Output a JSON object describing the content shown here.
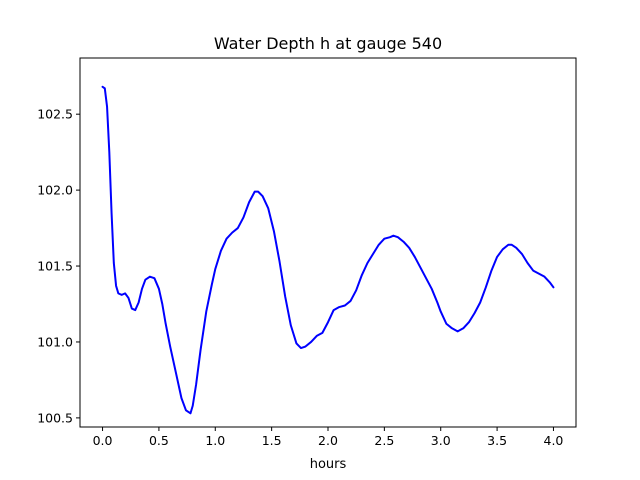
{
  "chart_data": {
    "type": "line",
    "title": "Water Depth h at gauge 540",
    "xlabel": "hours",
    "ylabel": "",
    "xlim": [
      -0.2,
      4.2
    ],
    "ylim": [
      100.44,
      102.87
    ],
    "xticks": [
      0.0,
      0.5,
      1.0,
      1.5,
      2.0,
      2.5,
      3.0,
      3.5,
      4.0
    ],
    "xtick_labels": [
      "0.0",
      "0.5",
      "1.0",
      "1.5",
      "2.0",
      "2.5",
      "3.0",
      "3.5",
      "4.0"
    ],
    "yticks": [
      100.5,
      101.0,
      101.5,
      102.0,
      102.5
    ],
    "ytick_labels": [
      "100.5",
      "101.0",
      "101.5",
      "102.0",
      "102.5"
    ],
    "grid": false,
    "series": [
      {
        "color": "#0000ff",
        "x": [
          0.0,
          0.02,
          0.04,
          0.06,
          0.08,
          0.1,
          0.12,
          0.14,
          0.17,
          0.2,
          0.23,
          0.26,
          0.29,
          0.32,
          0.35,
          0.38,
          0.42,
          0.46,
          0.5,
          0.53,
          0.56,
          0.6,
          0.65,
          0.7,
          0.74,
          0.78,
          0.8,
          0.83,
          0.87,
          0.92,
          0.97,
          1.0,
          1.05,
          1.1,
          1.15,
          1.2,
          1.25,
          1.3,
          1.35,
          1.38,
          1.42,
          1.47,
          1.52,
          1.57,
          1.62,
          1.67,
          1.72,
          1.76,
          1.8,
          1.85,
          1.9,
          1.95,
          2.0,
          2.05,
          2.1,
          2.15,
          2.2,
          2.25,
          2.3,
          2.35,
          2.4,
          2.45,
          2.5,
          2.55,
          2.58,
          2.62,
          2.67,
          2.72,
          2.77,
          2.82,
          2.87,
          2.92,
          2.97,
          3.0,
          3.05,
          3.1,
          3.15,
          3.2,
          3.25,
          3.3,
          3.35,
          3.4,
          3.45,
          3.5,
          3.55,
          3.6,
          3.63,
          3.67,
          3.72,
          3.77,
          3.82,
          3.87,
          3.92,
          3.97,
          4.0
        ],
        "y": [
          102.68,
          102.67,
          102.55,
          102.25,
          101.85,
          101.52,
          101.37,
          101.32,
          101.31,
          101.32,
          101.29,
          101.22,
          101.21,
          101.26,
          101.35,
          101.41,
          101.43,
          101.42,
          101.35,
          101.25,
          101.12,
          100.97,
          100.8,
          100.63,
          100.55,
          100.53,
          100.58,
          100.72,
          100.95,
          101.2,
          101.38,
          101.48,
          101.6,
          101.68,
          101.72,
          101.75,
          101.82,
          101.92,
          101.99,
          101.99,
          101.96,
          101.88,
          101.73,
          101.53,
          101.3,
          101.11,
          100.99,
          100.96,
          100.97,
          101.0,
          101.04,
          101.06,
          101.13,
          101.21,
          101.23,
          101.24,
          101.27,
          101.34,
          101.44,
          101.52,
          101.58,
          101.64,
          101.68,
          101.69,
          101.7,
          101.69,
          101.66,
          101.62,
          101.56,
          101.49,
          101.42,
          101.35,
          101.26,
          101.2,
          101.12,
          101.09,
          101.07,
          101.09,
          101.13,
          101.19,
          101.26,
          101.36,
          101.47,
          101.56,
          101.61,
          101.64,
          101.64,
          101.62,
          101.58,
          101.52,
          101.47,
          101.45,
          101.43,
          101.39,
          101.36
        ]
      }
    ]
  }
}
